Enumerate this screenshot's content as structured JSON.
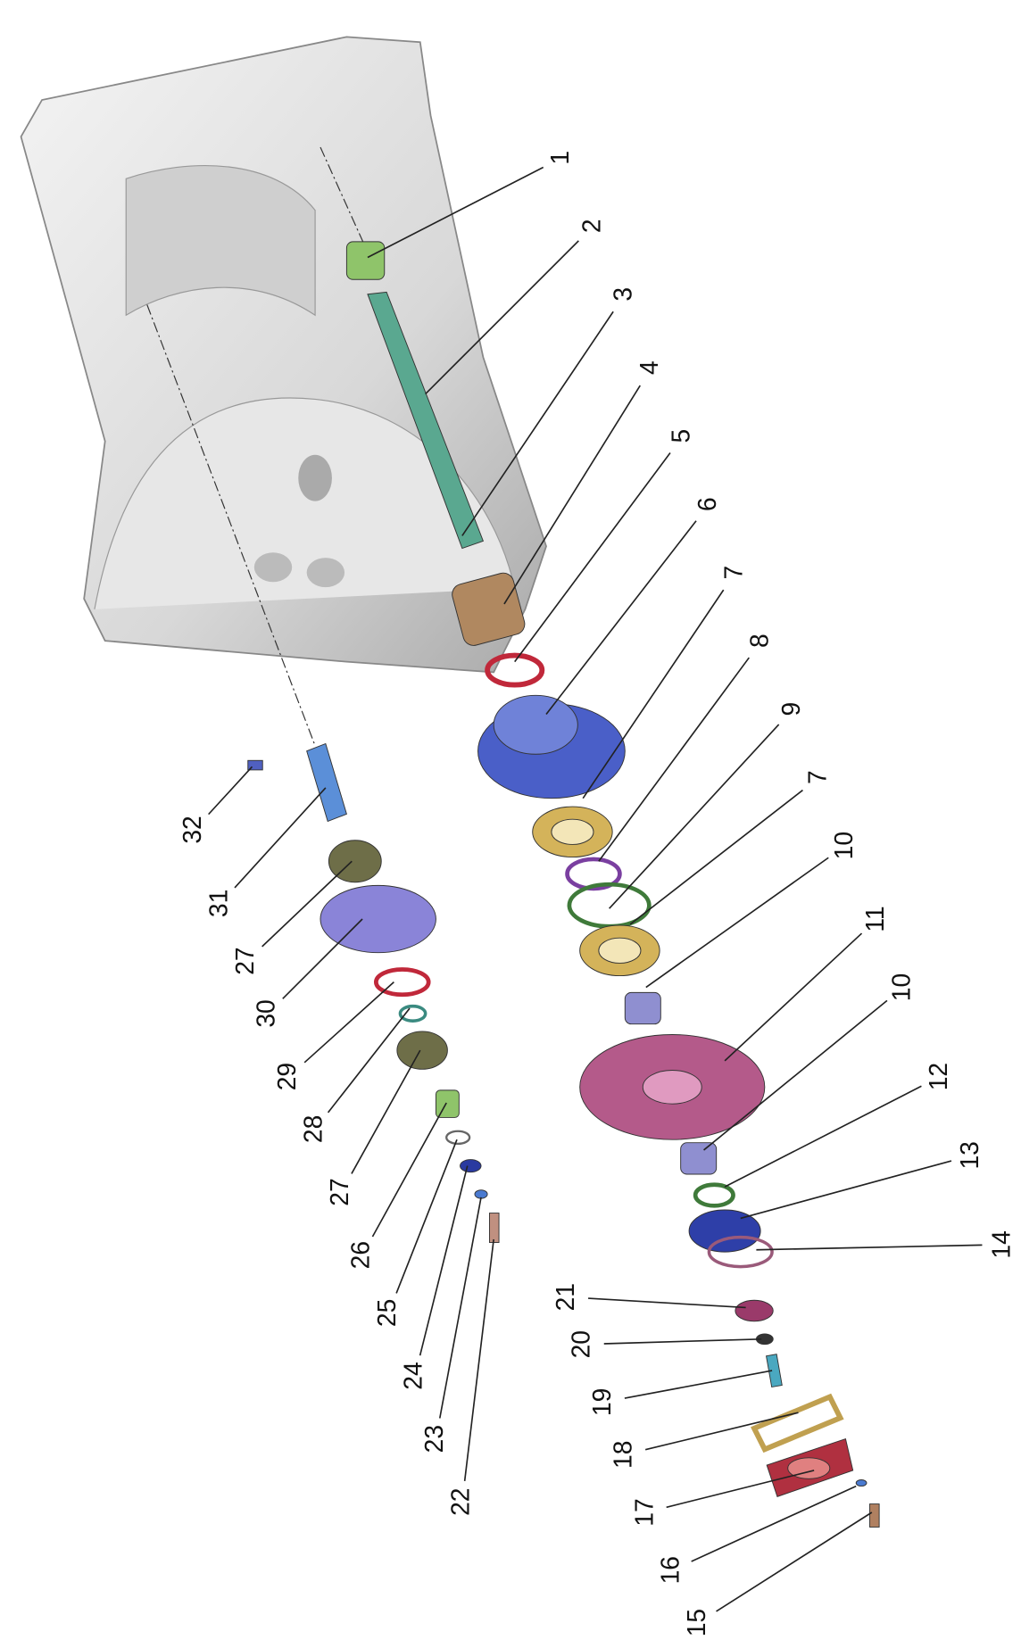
{
  "callouts": [
    "1",
    "2",
    "3",
    "4",
    "5",
    "6",
    "7",
    "8",
    "9",
    "7",
    "10",
    "11",
    "10",
    "12",
    "13",
    "14",
    "21",
    "20",
    "19",
    "18",
    "17",
    "16",
    "15",
    "22",
    "23",
    "24",
    "25",
    "26",
    "27",
    "28",
    "29",
    "30",
    "27",
    "31",
    "32"
  ]
}
